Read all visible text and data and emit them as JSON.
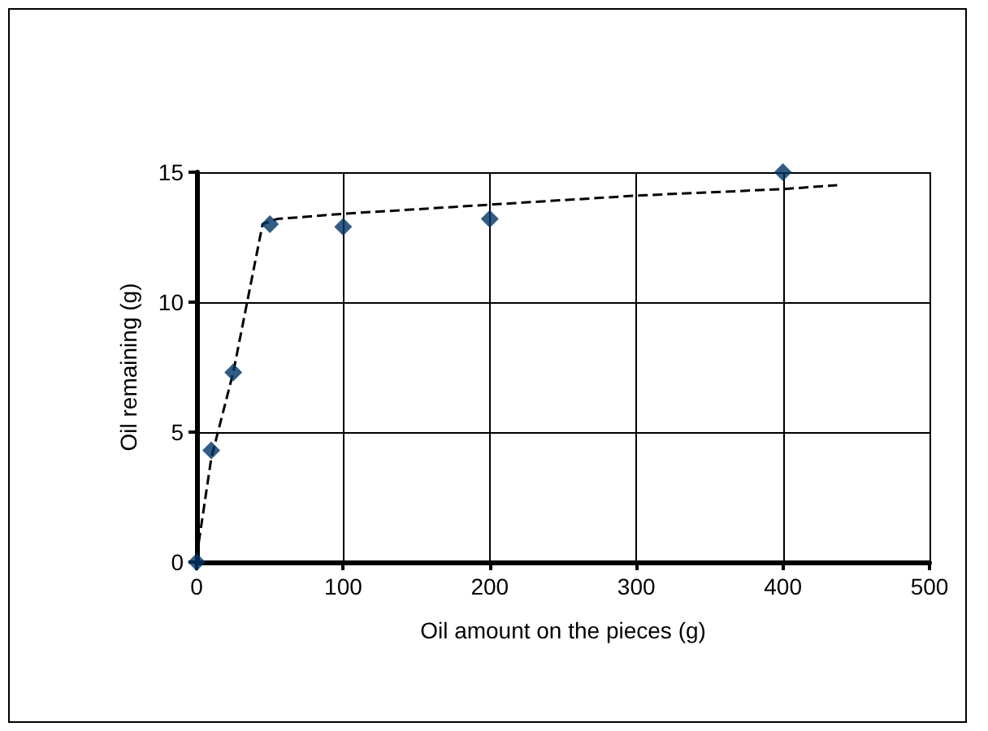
{
  "chart_data": {
    "type": "scatter",
    "xlabel": "Oil amount on the pieces (g)",
    "ylabel": "Oil remaining (g)",
    "xlim": [
      0,
      500
    ],
    "xticks": [
      0,
      100,
      200,
      300,
      400,
      500
    ],
    "ylim": [
      0,
      15
    ],
    "yticks": [
      0,
      5,
      10,
      15
    ],
    "grid": true,
    "series": [
      {
        "color": "#003366",
        "marker": "diamond",
        "x": [
          0,
          10,
          25,
          50,
          100,
          200,
          400
        ],
        "values": [
          0,
          4.3,
          7.3,
          13.0,
          12.9,
          13.2,
          15.0
        ]
      },
      {
        "type": "line",
        "color": "#000000",
        "line_style": "dashed",
        "marker": "none",
        "x": [
          0,
          10,
          25,
          45,
          55,
          100,
          200,
          300,
          400,
          437
        ],
        "values": [
          0.2,
          4.0,
          7.3,
          13.0,
          13.2,
          13.4,
          13.75,
          14.1,
          14.35,
          14.5
        ]
      }
    ]
  }
}
